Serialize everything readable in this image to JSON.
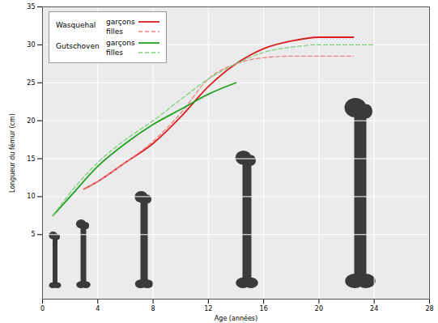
{
  "chart_data": {
    "type": "line",
    "x_label": "Age (années)",
    "y_label": "Longueur du fémur (cm)",
    "xlim": [
      0,
      28
    ],
    "xticks": [
      0,
      4,
      8,
      12,
      16,
      20,
      24,
      28
    ],
    "ylim": [
      -3.5,
      35
    ],
    "yticks": [
      5,
      10,
      15,
      20,
      25,
      30,
      35
    ],
    "grid": true,
    "legend": "top-left",
    "series": [
      {
        "group": "Wasquehal",
        "name": "garçons",
        "color": "#d62020",
        "line_style": "solid",
        "x": [
          3,
          4,
          6,
          8,
          10,
          12,
          14,
          16,
          18,
          20,
          22.5
        ],
        "values": [
          11,
          12,
          14.5,
          17,
          20.5,
          24.5,
          27.5,
          29.5,
          30.5,
          31,
          31
        ]
      },
      {
        "group": "Wasquehal",
        "name": "filles",
        "color": "#f08080",
        "line_style": "dashed",
        "x": [
          3,
          4,
          6,
          8,
          10,
          12,
          14,
          16,
          18,
          20,
          22.5
        ],
        "values": [
          11,
          12,
          14.5,
          17.3,
          21,
          25.5,
          27.5,
          28.3,
          28.5,
          28.5,
          28.5
        ]
      },
      {
        "group": "Gutschoven",
        "name": "garçons",
        "color": "#22a022",
        "line_style": "solid",
        "x": [
          0.75,
          2,
          4,
          6,
          8,
          10,
          12,
          14
        ],
        "values": [
          7.5,
          10,
          14,
          17,
          19.5,
          21.5,
          23.5,
          25
        ]
      },
      {
        "group": "Gutschoven",
        "name": "filles",
        "color": "#80d080",
        "line_style": "dashed",
        "x": [
          0.75,
          2,
          4,
          6,
          8,
          10,
          12,
          14,
          16,
          18,
          20,
          22,
          24
        ],
        "values": [
          7.5,
          10.5,
          14.5,
          17.5,
          20,
          22.8,
          25.5,
          27.5,
          29,
          29.7,
          30,
          30,
          30
        ]
      }
    ]
  }
}
